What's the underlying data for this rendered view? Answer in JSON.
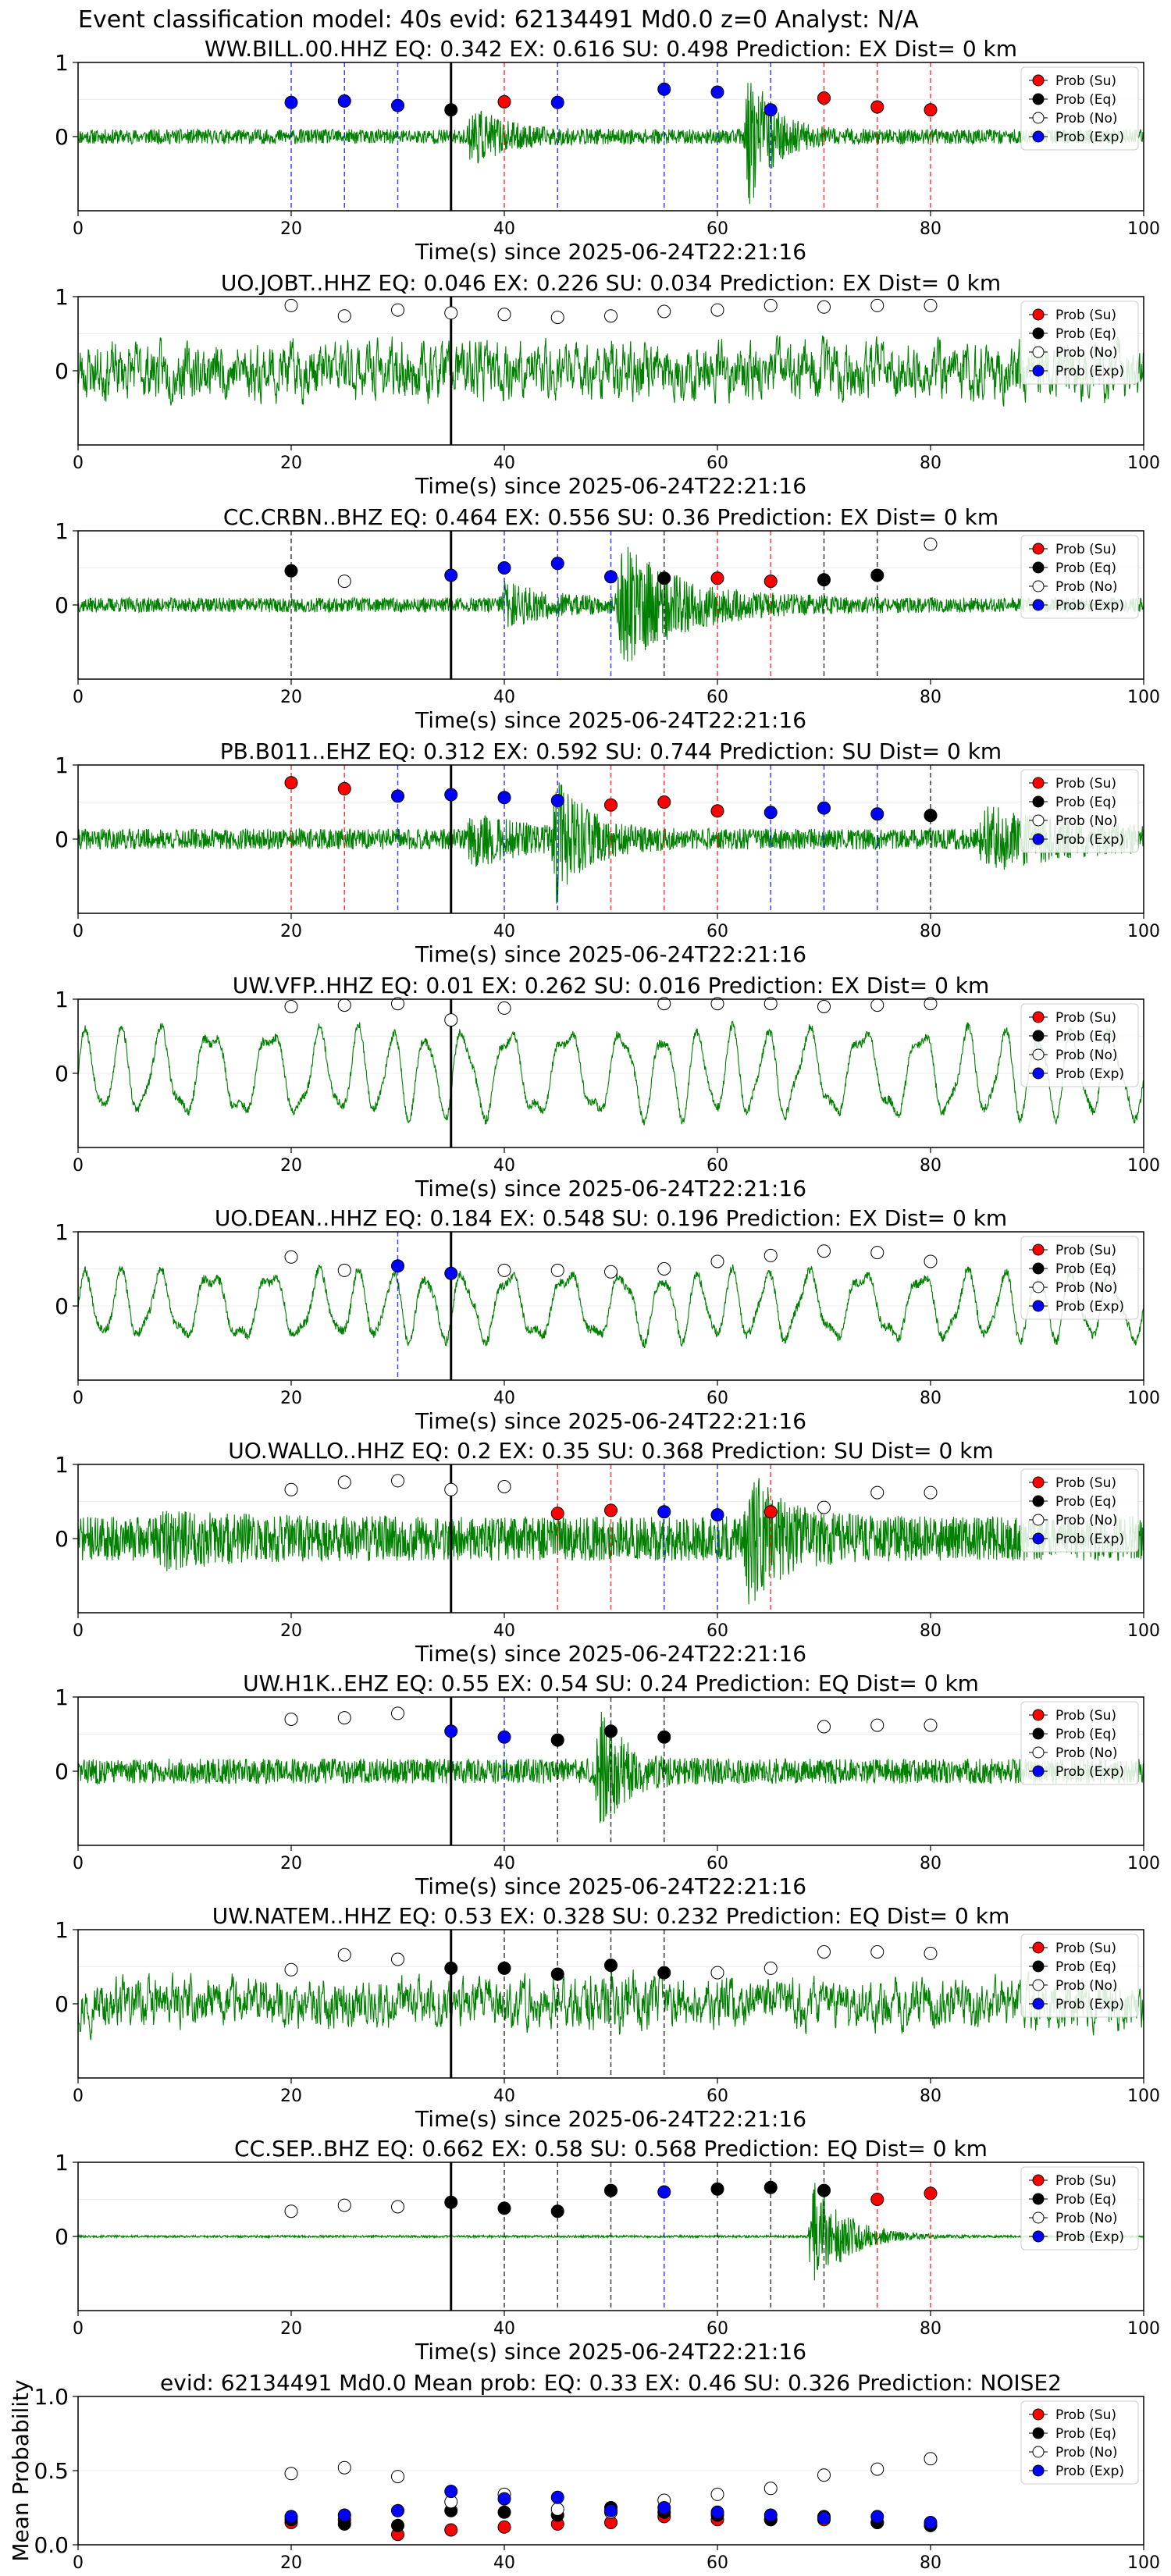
{
  "page_title": "Event classification model: 40s evid: 62134491 Md0.0 z=0 Analyst: N/A",
  "legend_labels": [
    "Prob (Su)",
    "Prob (Eq)",
    "Prob (No)",
    "Prob (Exp)"
  ],
  "colors": {
    "su": "#ff0000",
    "eq": "#000000",
    "no": "#ffffff",
    "exp": "#0000ff",
    "trace": "#008000",
    "pick": "#000000"
  },
  "chart_data": [
    {
      "type": "line",
      "title": "WW.BILL.00.HHZ   EQ: 0.342  EX: 0.616  SU: 0.498   Prediction: EX    Dist= 0 km",
      "xlabel": "Time(s) since 2025-06-24T22:21:16",
      "ylabel": "",
      "xlim": [
        0,
        100
      ],
      "ylim": [
        -1,
        1
      ],
      "xticks": [
        "0",
        "20",
        "40",
        "60",
        "80",
        "100"
      ],
      "yticks": [
        "0",
        "1"
      ],
      "pick_time": 35,
      "trace_style": "burst",
      "trace_params": {
        "base": 0.1,
        "bursts": [
          [
            37,
            3,
            0.35
          ],
          [
            63,
            2.2,
            0.9
          ]
        ],
        "seed": 11
      },
      "points": [
        {
          "t": 20,
          "p": 0.46,
          "cls": "exp"
        },
        {
          "t": 25,
          "p": 0.48,
          "cls": "exp"
        },
        {
          "t": 30,
          "p": 0.42,
          "cls": "exp"
        },
        {
          "t": 35,
          "p": 0.36,
          "cls": "eq"
        },
        {
          "t": 40,
          "p": 0.47,
          "cls": "su"
        },
        {
          "t": 45,
          "p": 0.46,
          "cls": "exp"
        },
        {
          "t": 55,
          "p": 0.64,
          "cls": "exp"
        },
        {
          "t": 60,
          "p": 0.6,
          "cls": "exp"
        },
        {
          "t": 65,
          "p": 0.36,
          "cls": "exp"
        },
        {
          "t": 70,
          "p": 0.52,
          "cls": "su"
        },
        {
          "t": 75,
          "p": 0.4,
          "cls": "su"
        },
        {
          "t": 80,
          "p": 0.36,
          "cls": "su"
        }
      ]
    },
    {
      "type": "line",
      "title": "UO.JOBT..HHZ   EQ: 0.046  EX: 0.226  SU: 0.034   Prediction: EX    Dist= 0 km",
      "xlabel": "Time(s) since 2025-06-24T22:21:16",
      "ylabel": "",
      "xlim": [
        0,
        100
      ],
      "ylim": [
        -1,
        1
      ],
      "xticks": [
        "0",
        "20",
        "40",
        "60",
        "80",
        "100"
      ],
      "yticks": [
        "0",
        "1"
      ],
      "pick_time": 35,
      "trace_style": "noise",
      "trace_params": {
        "base": 0.38,
        "bursts": [],
        "seed": 23
      },
      "points": [
        {
          "t": 20,
          "p": 0.88,
          "cls": "no"
        },
        {
          "t": 25,
          "p": 0.74,
          "cls": "no"
        },
        {
          "t": 30,
          "p": 0.82,
          "cls": "no"
        },
        {
          "t": 35,
          "p": 0.78,
          "cls": "no"
        },
        {
          "t": 40,
          "p": 0.76,
          "cls": "no"
        },
        {
          "t": 45,
          "p": 0.72,
          "cls": "no"
        },
        {
          "t": 50,
          "p": 0.74,
          "cls": "no"
        },
        {
          "t": 55,
          "p": 0.8,
          "cls": "no"
        },
        {
          "t": 60,
          "p": 0.82,
          "cls": "no"
        },
        {
          "t": 65,
          "p": 0.88,
          "cls": "no"
        },
        {
          "t": 70,
          "p": 0.86,
          "cls": "no"
        },
        {
          "t": 75,
          "p": 0.88,
          "cls": "no"
        },
        {
          "t": 80,
          "p": 0.88,
          "cls": "no"
        }
      ]
    },
    {
      "type": "line",
      "title": "CC.CRBN..BHZ   EQ: 0.464  EX: 0.556  SU: 0.36   Prediction: EX    Dist= 0 km",
      "xlabel": "Time(s) since 2025-06-24T22:21:16",
      "ylabel": "",
      "xlim": [
        0,
        100
      ],
      "ylim": [
        -1,
        1
      ],
      "xticks": [
        "0",
        "20",
        "40",
        "60",
        "80",
        "100"
      ],
      "yticks": [
        "0",
        "1"
      ],
      "pick_time": 35,
      "trace_style": "burst",
      "trace_params": {
        "base": 0.1,
        "bursts": [
          [
            51,
            6,
            0.75
          ],
          [
            40,
            4,
            0.25
          ]
        ],
        "seed": 37
      },
      "points": [
        {
          "t": 20,
          "p": 0.46,
          "cls": "eq"
        },
        {
          "t": 25,
          "p": 0.32,
          "cls": "no"
        },
        {
          "t": 35,
          "p": 0.4,
          "cls": "exp"
        },
        {
          "t": 40,
          "p": 0.5,
          "cls": "exp"
        },
        {
          "t": 45,
          "p": 0.56,
          "cls": "exp"
        },
        {
          "t": 50,
          "p": 0.38,
          "cls": "exp"
        },
        {
          "t": 55,
          "p": 0.36,
          "cls": "eq"
        },
        {
          "t": 60,
          "p": 0.36,
          "cls": "su"
        },
        {
          "t": 65,
          "p": 0.32,
          "cls": "su"
        },
        {
          "t": 70,
          "p": 0.34,
          "cls": "eq"
        },
        {
          "t": 75,
          "p": 0.4,
          "cls": "eq"
        },
        {
          "t": 80,
          "p": 0.82,
          "cls": "no"
        }
      ]
    },
    {
      "type": "line",
      "title": "PB.B011..EHZ   EQ: 0.312  EX: 0.592  SU: 0.744   Prediction: SU    Dist= 0 km",
      "xlabel": "Time(s) since 2025-06-24T22:21:16",
      "ylabel": "",
      "xlim": [
        0,
        100
      ],
      "ylim": [
        -1,
        1
      ],
      "xticks": [
        "0",
        "20",
        "40",
        "60",
        "80",
        "100"
      ],
      "yticks": [
        "0",
        "1"
      ],
      "pick_time": 35,
      "trace_style": "burst",
      "trace_params": {
        "base": 0.14,
        "bursts": [
          [
            45,
            2.5,
            0.85
          ],
          [
            37,
            4,
            0.3
          ],
          [
            85,
            8,
            0.35
          ]
        ],
        "seed": 41
      },
      "points": [
        {
          "t": 20,
          "p": 0.76,
          "cls": "su"
        },
        {
          "t": 25,
          "p": 0.68,
          "cls": "su"
        },
        {
          "t": 30,
          "p": 0.58,
          "cls": "exp"
        },
        {
          "t": 35,
          "p": 0.6,
          "cls": "exp"
        },
        {
          "t": 40,
          "p": 0.56,
          "cls": "exp"
        },
        {
          "t": 45,
          "p": 0.52,
          "cls": "exp"
        },
        {
          "t": 50,
          "p": 0.46,
          "cls": "su"
        },
        {
          "t": 55,
          "p": 0.5,
          "cls": "su"
        },
        {
          "t": 60,
          "p": 0.38,
          "cls": "su"
        },
        {
          "t": 65,
          "p": 0.36,
          "cls": "exp"
        },
        {
          "t": 70,
          "p": 0.42,
          "cls": "exp"
        },
        {
          "t": 75,
          "p": 0.34,
          "cls": "exp"
        },
        {
          "t": 80,
          "p": 0.32,
          "cls": "eq"
        }
      ]
    },
    {
      "type": "line",
      "title": "UW.VFP..HHZ   EQ: 0.01  EX: 0.262  SU: 0.016   Prediction: EX    Dist= 0 km",
      "xlabel": "Time(s) since 2025-06-24T22:21:16",
      "ylabel": "",
      "xlim": [
        0,
        100
      ],
      "ylim": [
        -1,
        1
      ],
      "xticks": [
        "0",
        "20",
        "40",
        "60",
        "80",
        "100"
      ],
      "yticks": [
        "0",
        "1"
      ],
      "pick_time": 35,
      "trace_style": "wave",
      "trace_params": {
        "base": 0.7,
        "bursts": [],
        "seed": 53
      },
      "points": [
        {
          "t": 20,
          "p": 0.9,
          "cls": "no"
        },
        {
          "t": 25,
          "p": 0.92,
          "cls": "no"
        },
        {
          "t": 30,
          "p": 0.94,
          "cls": "no"
        },
        {
          "t": 35,
          "p": 0.72,
          "cls": "no"
        },
        {
          "t": 40,
          "p": 0.88,
          "cls": "no"
        },
        {
          "t": 55,
          "p": 0.94,
          "cls": "no"
        },
        {
          "t": 60,
          "p": 0.94,
          "cls": "no"
        },
        {
          "t": 65,
          "p": 0.94,
          "cls": "no"
        },
        {
          "t": 70,
          "p": 0.9,
          "cls": "no"
        },
        {
          "t": 75,
          "p": 0.92,
          "cls": "no"
        },
        {
          "t": 80,
          "p": 0.94,
          "cls": "no"
        }
      ]
    },
    {
      "type": "line",
      "title": "UO.DEAN..HHZ   EQ: 0.184  EX: 0.548  SU: 0.196   Prediction: EX    Dist= 0 km",
      "xlabel": "Time(s) since 2025-06-24T22:21:16",
      "ylabel": "",
      "xlim": [
        0,
        100
      ],
      "ylim": [
        -1,
        1
      ],
      "xticks": [
        "0",
        "20",
        "40",
        "60",
        "80",
        "100"
      ],
      "yticks": [
        "0",
        "1"
      ],
      "pick_time": 35,
      "trace_style": "wave",
      "trace_params": {
        "base": 0.55,
        "bursts": [],
        "seed": 67
      },
      "points": [
        {
          "t": 20,
          "p": 0.66,
          "cls": "no"
        },
        {
          "t": 25,
          "p": 0.48,
          "cls": "no"
        },
        {
          "t": 30,
          "p": 0.54,
          "cls": "exp"
        },
        {
          "t": 35,
          "p": 0.44,
          "cls": "exp"
        },
        {
          "t": 40,
          "p": 0.48,
          "cls": "no"
        },
        {
          "t": 45,
          "p": 0.48,
          "cls": "no"
        },
        {
          "t": 50,
          "p": 0.46,
          "cls": "no"
        },
        {
          "t": 55,
          "p": 0.5,
          "cls": "no"
        },
        {
          "t": 60,
          "p": 0.6,
          "cls": "no"
        },
        {
          "t": 65,
          "p": 0.68,
          "cls": "no"
        },
        {
          "t": 70,
          "p": 0.74,
          "cls": "no"
        },
        {
          "t": 75,
          "p": 0.72,
          "cls": "no"
        },
        {
          "t": 80,
          "p": 0.6,
          "cls": "no"
        }
      ]
    },
    {
      "type": "line",
      "title": "UO.WALLO..HHZ   EQ: 0.2  EX: 0.35  SU: 0.368   Prediction: SU    Dist= 0 km",
      "xlabel": "Time(s) since 2025-06-24T22:21:16",
      "ylabel": "",
      "xlim": [
        0,
        100
      ],
      "ylim": [
        -1,
        1
      ],
      "xticks": [
        "0",
        "20",
        "40",
        "60",
        "80",
        "100"
      ],
      "yticks": [
        "0",
        "1"
      ],
      "pick_time": 35,
      "trace_style": "burst",
      "trace_params": {
        "base": 0.3,
        "bursts": [
          [
            63,
            3,
            0.7
          ],
          [
            8,
            6,
            0.15
          ]
        ],
        "seed": 71
      },
      "points": [
        {
          "t": 20,
          "p": 0.66,
          "cls": "no"
        },
        {
          "t": 25,
          "p": 0.76,
          "cls": "no"
        },
        {
          "t": 30,
          "p": 0.78,
          "cls": "no"
        },
        {
          "t": 35,
          "p": 0.66,
          "cls": "no"
        },
        {
          "t": 40,
          "p": 0.7,
          "cls": "no"
        },
        {
          "t": 45,
          "p": 0.34,
          "cls": "su"
        },
        {
          "t": 50,
          "p": 0.38,
          "cls": "su"
        },
        {
          "t": 55,
          "p": 0.36,
          "cls": "exp"
        },
        {
          "t": 60,
          "p": 0.32,
          "cls": "exp"
        },
        {
          "t": 65,
          "p": 0.36,
          "cls": "su"
        },
        {
          "t": 70,
          "p": 0.42,
          "cls": "no"
        },
        {
          "t": 75,
          "p": 0.62,
          "cls": "no"
        },
        {
          "t": 80,
          "p": 0.62,
          "cls": "no"
        }
      ]
    },
    {
      "type": "line",
      "title": "UW.H1K..EHZ   EQ: 0.55  EX: 0.54  SU: 0.24   Prediction: EQ    Dist= 0 km",
      "xlabel": "Time(s) since 2025-06-24T22:21:16",
      "ylabel": "",
      "xlim": [
        0,
        100
      ],
      "ylim": [
        -1,
        1
      ],
      "xticks": [
        "0",
        "20",
        "40",
        "60",
        "80",
        "100"
      ],
      "yticks": [
        "0",
        "1"
      ],
      "pick_time": 35,
      "trace_style": "burst",
      "trace_params": {
        "base": 0.17,
        "bursts": [
          [
            49,
            2.2,
            0.75
          ]
        ],
        "seed": 83
      },
      "points": [
        {
          "t": 20,
          "p": 0.7,
          "cls": "no"
        },
        {
          "t": 25,
          "p": 0.72,
          "cls": "no"
        },
        {
          "t": 30,
          "p": 0.78,
          "cls": "no"
        },
        {
          "t": 35,
          "p": 0.54,
          "cls": "exp"
        },
        {
          "t": 40,
          "p": 0.46,
          "cls": "exp"
        },
        {
          "t": 45,
          "p": 0.42,
          "cls": "eq"
        },
        {
          "t": 50,
          "p": 0.54,
          "cls": "eq"
        },
        {
          "t": 55,
          "p": 0.46,
          "cls": "eq"
        },
        {
          "t": 70,
          "p": 0.6,
          "cls": "no"
        },
        {
          "t": 75,
          "p": 0.62,
          "cls": "no"
        },
        {
          "t": 80,
          "p": 0.62,
          "cls": "no"
        }
      ]
    },
    {
      "type": "line",
      "title": "UW.NATEM..HHZ   EQ: 0.53  EX: 0.328  SU: 0.232   Prediction: EQ    Dist= 0 km",
      "xlabel": "Time(s) since 2025-06-24T22:21:16",
      "ylabel": "",
      "xlim": [
        0,
        100
      ],
      "ylim": [
        -1,
        1
      ],
      "xticks": [
        "0",
        "20",
        "40",
        "60",
        "80",
        "100"
      ],
      "yticks": [
        "0",
        "1"
      ],
      "pick_time": 35,
      "trace_style": "noise",
      "trace_params": {
        "base": 0.32,
        "bursts": [
          [
            48,
            6,
            0.15
          ]
        ],
        "seed": 97
      },
      "points": [
        {
          "t": 20,
          "p": 0.46,
          "cls": "no"
        },
        {
          "t": 25,
          "p": 0.66,
          "cls": "no"
        },
        {
          "t": 30,
          "p": 0.6,
          "cls": "no"
        },
        {
          "t": 35,
          "p": 0.48,
          "cls": "eq"
        },
        {
          "t": 40,
          "p": 0.48,
          "cls": "eq"
        },
        {
          "t": 45,
          "p": 0.4,
          "cls": "eq"
        },
        {
          "t": 50,
          "p": 0.52,
          "cls": "eq"
        },
        {
          "t": 55,
          "p": 0.42,
          "cls": "eq"
        },
        {
          "t": 60,
          "p": 0.42,
          "cls": "no"
        },
        {
          "t": 65,
          "p": 0.48,
          "cls": "no"
        },
        {
          "t": 70,
          "p": 0.7,
          "cls": "no"
        },
        {
          "t": 75,
          "p": 0.7,
          "cls": "no"
        },
        {
          "t": 80,
          "p": 0.68,
          "cls": "no"
        }
      ]
    },
    {
      "type": "line",
      "title": "CC.SEP..BHZ   EQ: 0.662  EX: 0.58  SU: 0.568   Prediction: EQ    Dist= 0 km",
      "xlabel": "Time(s) since 2025-06-24T22:21:16",
      "ylabel": "",
      "xlim": [
        0,
        100
      ],
      "ylim": [
        -1,
        1
      ],
      "xticks": [
        "0",
        "20",
        "40",
        "60",
        "80",
        "100"
      ],
      "yticks": [
        "0",
        "1"
      ],
      "pick_time": 35,
      "trace_style": "burst",
      "trace_params": {
        "base": 0.015,
        "bursts": [
          [
            69,
            3,
            0.8
          ]
        ],
        "seed": 101
      },
      "points": [
        {
          "t": 20,
          "p": 0.34,
          "cls": "no"
        },
        {
          "t": 25,
          "p": 0.42,
          "cls": "no"
        },
        {
          "t": 30,
          "p": 0.4,
          "cls": "no"
        },
        {
          "t": 35,
          "p": 0.46,
          "cls": "eq"
        },
        {
          "t": 40,
          "p": 0.38,
          "cls": "eq"
        },
        {
          "t": 45,
          "p": 0.34,
          "cls": "eq"
        },
        {
          "t": 50,
          "p": 0.62,
          "cls": "eq"
        },
        {
          "t": 55,
          "p": 0.6,
          "cls": "exp"
        },
        {
          "t": 60,
          "p": 0.64,
          "cls": "eq"
        },
        {
          "t": 65,
          "p": 0.66,
          "cls": "eq"
        },
        {
          "t": 70,
          "p": 0.62,
          "cls": "eq"
        },
        {
          "t": 75,
          "p": 0.5,
          "cls": "su"
        },
        {
          "t": 80,
          "p": 0.58,
          "cls": "su"
        }
      ]
    },
    {
      "type": "scatter",
      "title": "evid: 62134491  Md0.0   Mean prob:   EQ: 0.33  EX: 0.46  SU: 0.326   Prediction: NOISE2",
      "xlabel": "",
      "ylabel": "Mean Probability",
      "xlim": [
        0,
        100
      ],
      "ylim": [
        0,
        1
      ],
      "xticks": [
        "0",
        "20",
        "40",
        "60",
        "80",
        "100"
      ],
      "yticks": [
        "0.0",
        "0.5",
        "1.0"
      ],
      "x": [
        20,
        25,
        30,
        35,
        40,
        45,
        50,
        55,
        60,
        65,
        70,
        75,
        80
      ],
      "series": [
        {
          "name": "Prob (Su)",
          "cls": "su",
          "values": [
            0.15,
            0.17,
            0.07,
            0.1,
            0.12,
            0.14,
            0.15,
            0.19,
            0.17,
            0.17,
            0.17,
            0.15,
            0.13
          ]
        },
        {
          "name": "Prob (Eq)",
          "cls": "eq",
          "values": [
            0.17,
            0.14,
            0.13,
            0.23,
            0.22,
            0.2,
            0.25,
            0.22,
            0.2,
            0.17,
            0.19,
            0.15,
            0.13
          ]
        },
        {
          "name": "Prob (No)",
          "cls": "no",
          "values": [
            0.48,
            0.52,
            0.46,
            0.29,
            0.34,
            0.24,
            0.22,
            0.3,
            0.34,
            0.38,
            0.47,
            0.51,
            0.58
          ]
        },
        {
          "name": "Prob (Exp)",
          "cls": "exp",
          "values": [
            0.19,
            0.2,
            0.23,
            0.36,
            0.31,
            0.32,
            0.23,
            0.25,
            0.22,
            0.2,
            0.18,
            0.19,
            0.15
          ]
        }
      ]
    }
  ]
}
